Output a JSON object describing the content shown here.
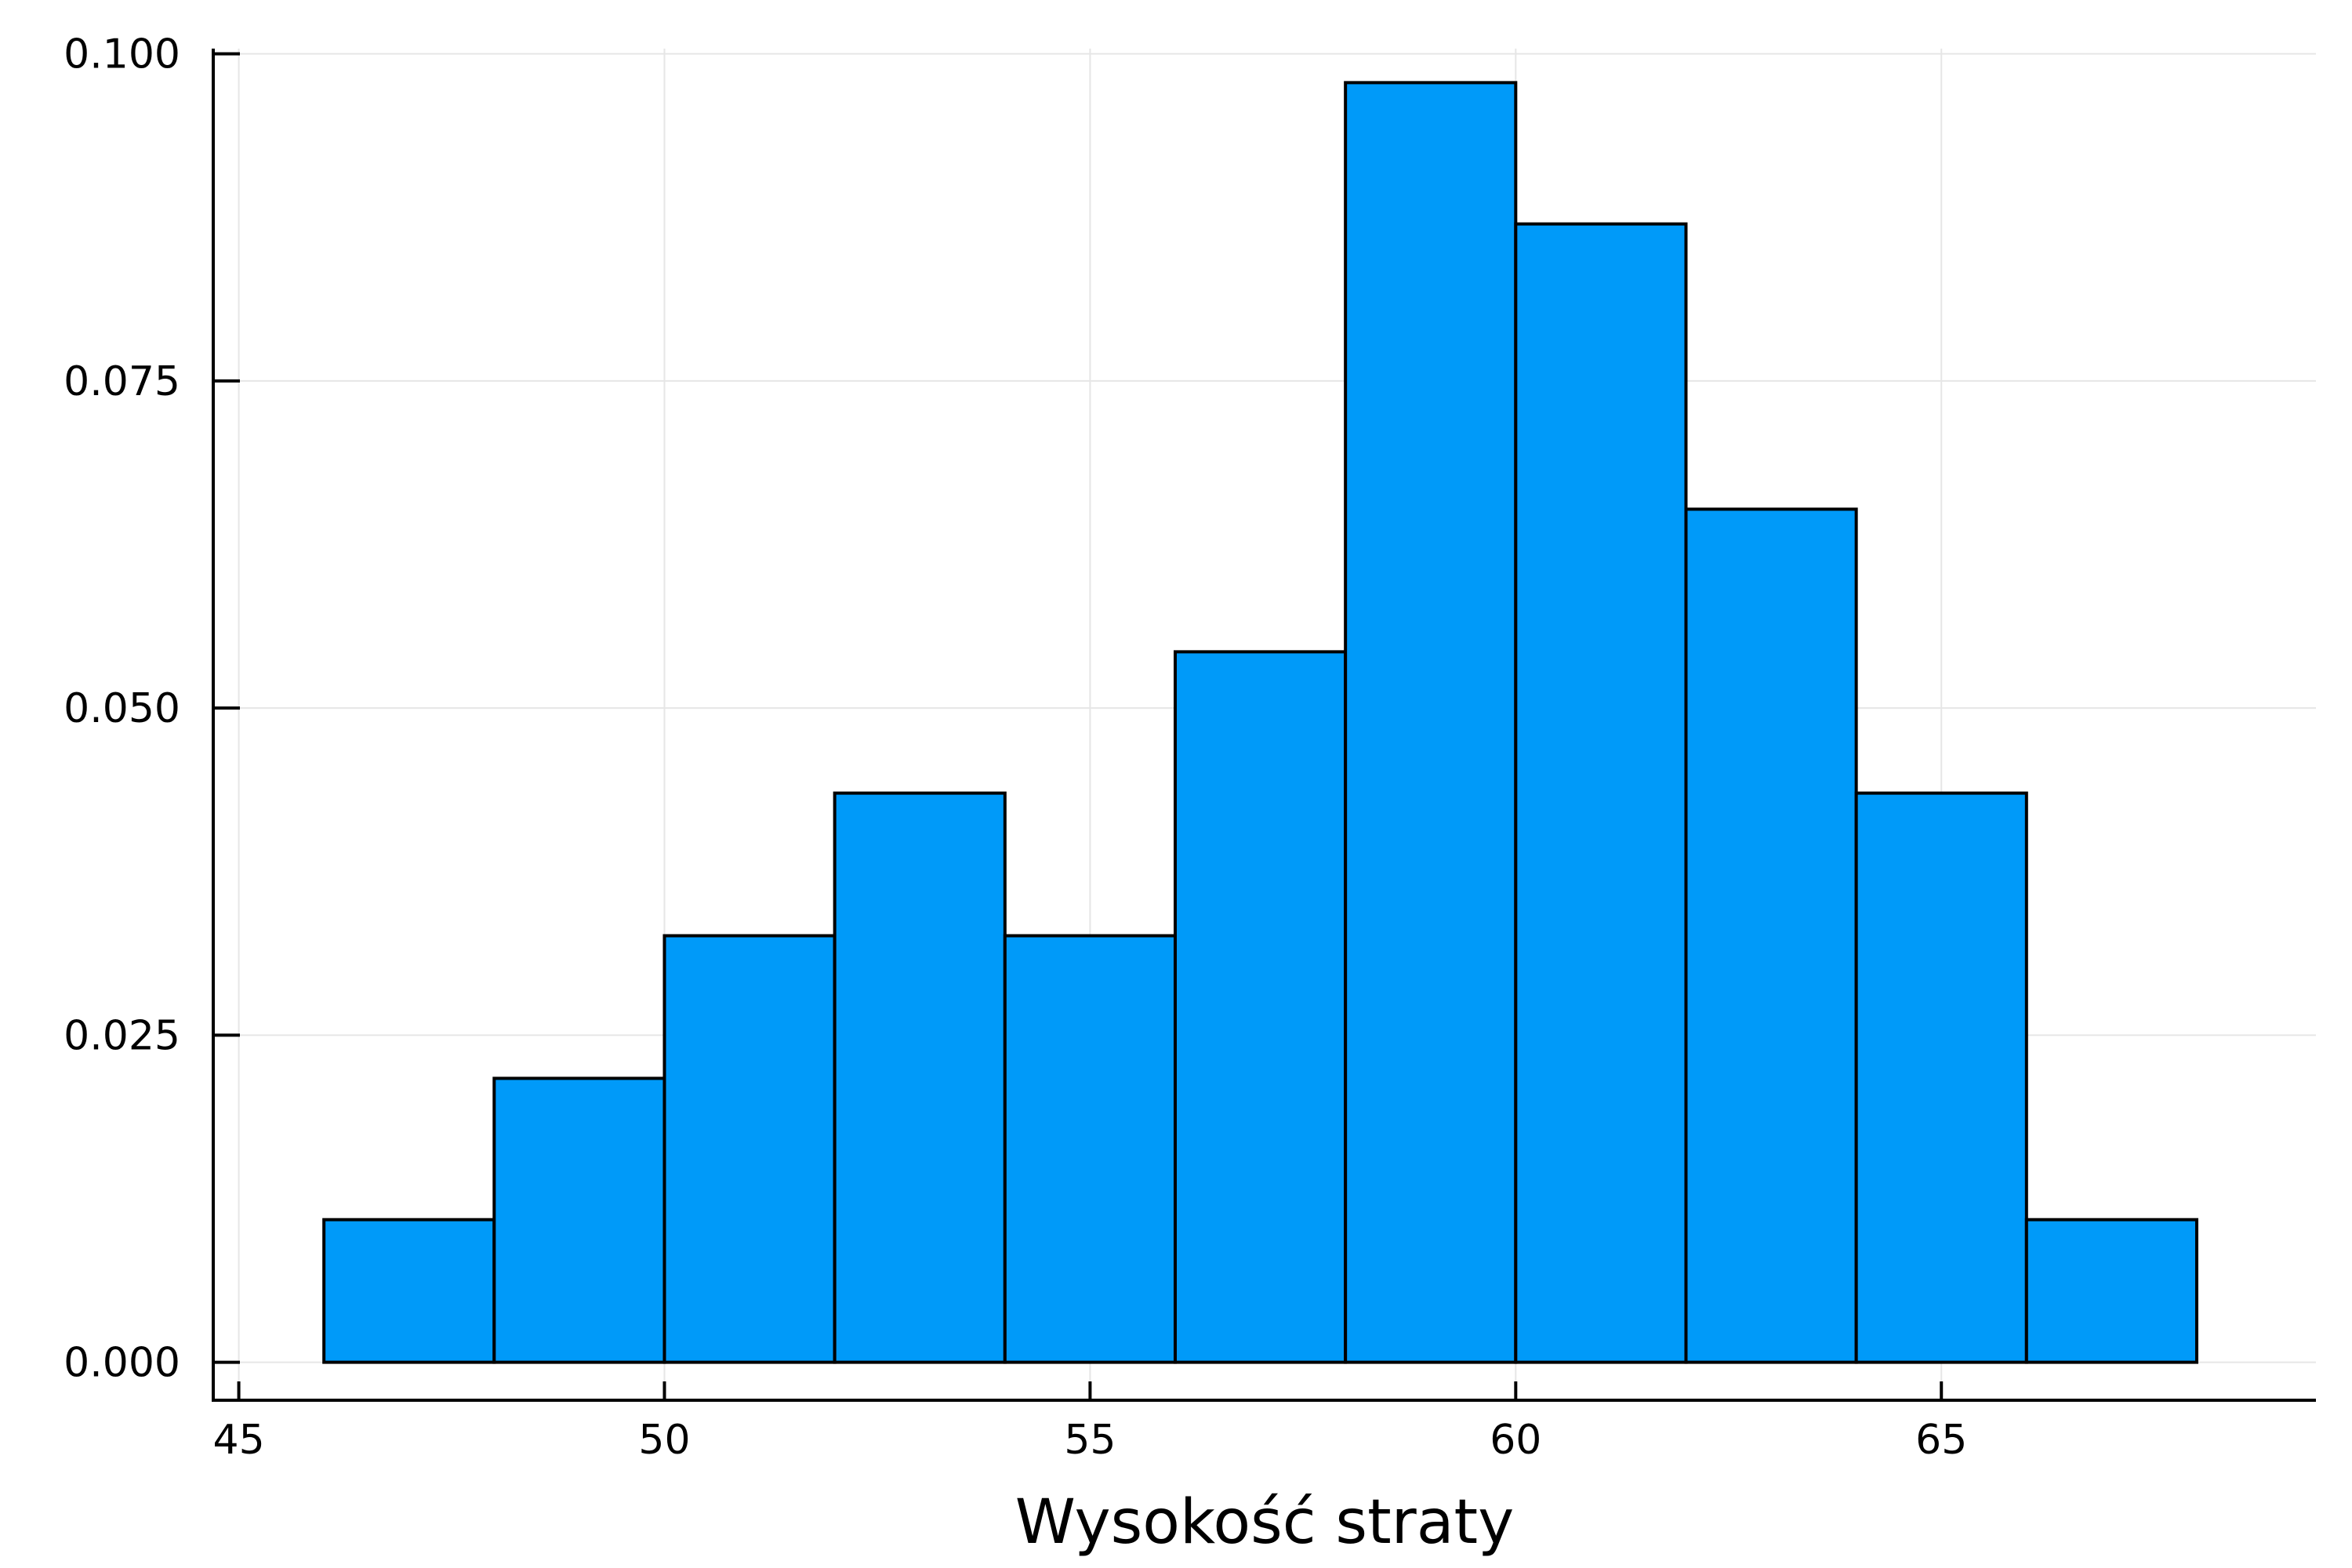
{
  "chart_data": {
    "type": "bar",
    "subtype": "histogram",
    "title": "",
    "xlabel": "Wysokość straty",
    "ylabel": "",
    "bins": [
      {
        "x0": 46,
        "x1": 48,
        "value": 0.0109
      },
      {
        "x0": 48,
        "x1": 50,
        "value": 0.0217
      },
      {
        "x0": 50,
        "x1": 52,
        "value": 0.0326
      },
      {
        "x0": 52,
        "x1": 54,
        "value": 0.0435
      },
      {
        "x0": 54,
        "x1": 56,
        "value": 0.0326
      },
      {
        "x0": 56,
        "x1": 58,
        "value": 0.0543
      },
      {
        "x0": 58,
        "x1": 60,
        "value": 0.0978
      },
      {
        "x0": 60,
        "x1": 62,
        "value": 0.087
      },
      {
        "x0": 62,
        "x1": 64,
        "value": 0.0652
      },
      {
        "x0": 64,
        "x1": 66,
        "value": 0.0435
      },
      {
        "x0": 66,
        "x1": 68,
        "value": 0.0109
      }
    ],
    "xlim": [
      44.7,
      69.4
    ],
    "ylim": [
      -0.0029,
      0.1004
    ],
    "x_ticks": [
      45,
      50,
      55,
      60,
      65
    ],
    "y_ticks": [
      0.0,
      0.025,
      0.05,
      0.075,
      0.1
    ],
    "x_tick_labels": [
      "45",
      "50",
      "55",
      "60",
      "65"
    ],
    "y_tick_labels": [
      "0.000",
      "0.025",
      "0.050",
      "0.075",
      "0.100"
    ],
    "bar_color": "#009af9",
    "edge_color": "#000000",
    "grid": true,
    "legend": "none"
  }
}
